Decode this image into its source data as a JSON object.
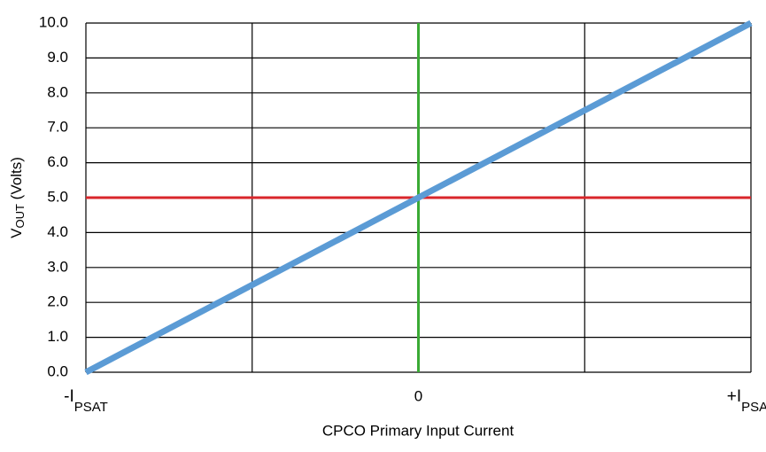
{
  "chart_data": {
    "type": "line",
    "x_label": "CPCO Primary Input Current",
    "y_label": [
      "V",
      "OUT",
      " (Volts)"
    ],
    "xlim": [
      -1,
      1
    ],
    "xticks": [
      {
        "value": -1,
        "label": "-I",
        "sub": "PSAT"
      },
      {
        "value": -0.5,
        "label": null
      },
      0,
      {
        "value": 0.5,
        "label": null
      },
      {
        "value": 1,
        "label": "+I",
        "sub": "PSAT"
      }
    ],
    "ylim": [
      0,
      10
    ],
    "yticks": [
      {
        "value": 0,
        "label": "0.0"
      },
      {
        "value": 1,
        "label": "1.0"
      },
      {
        "value": 2,
        "label": "2.0"
      },
      {
        "value": 3,
        "label": "3.0"
      },
      {
        "value": 4,
        "label": "4.0"
      },
      {
        "value": 5,
        "label": "5.0"
      },
      {
        "value": 6,
        "label": "6.0"
      },
      {
        "value": 7,
        "label": "7.0"
      },
      {
        "value": 8,
        "label": "8.0"
      },
      {
        "value": 9,
        "label": "9.0"
      },
      {
        "value": 10,
        "label": "10.0"
      }
    ],
    "grid": true,
    "series": [
      {
        "color": "#d9262b",
        "width": 3,
        "x": [
          -1,
          1
        ],
        "values": [
          5,
          5
        ]
      },
      {
        "color": "#3aaa35",
        "width": 3,
        "x": [
          0,
          0
        ],
        "values": [
          0,
          10
        ]
      },
      {
        "color": "#5b9bd5",
        "width": 7,
        "x": [
          -1,
          1
        ],
        "values": [
          0,
          10
        ]
      }
    ]
  }
}
